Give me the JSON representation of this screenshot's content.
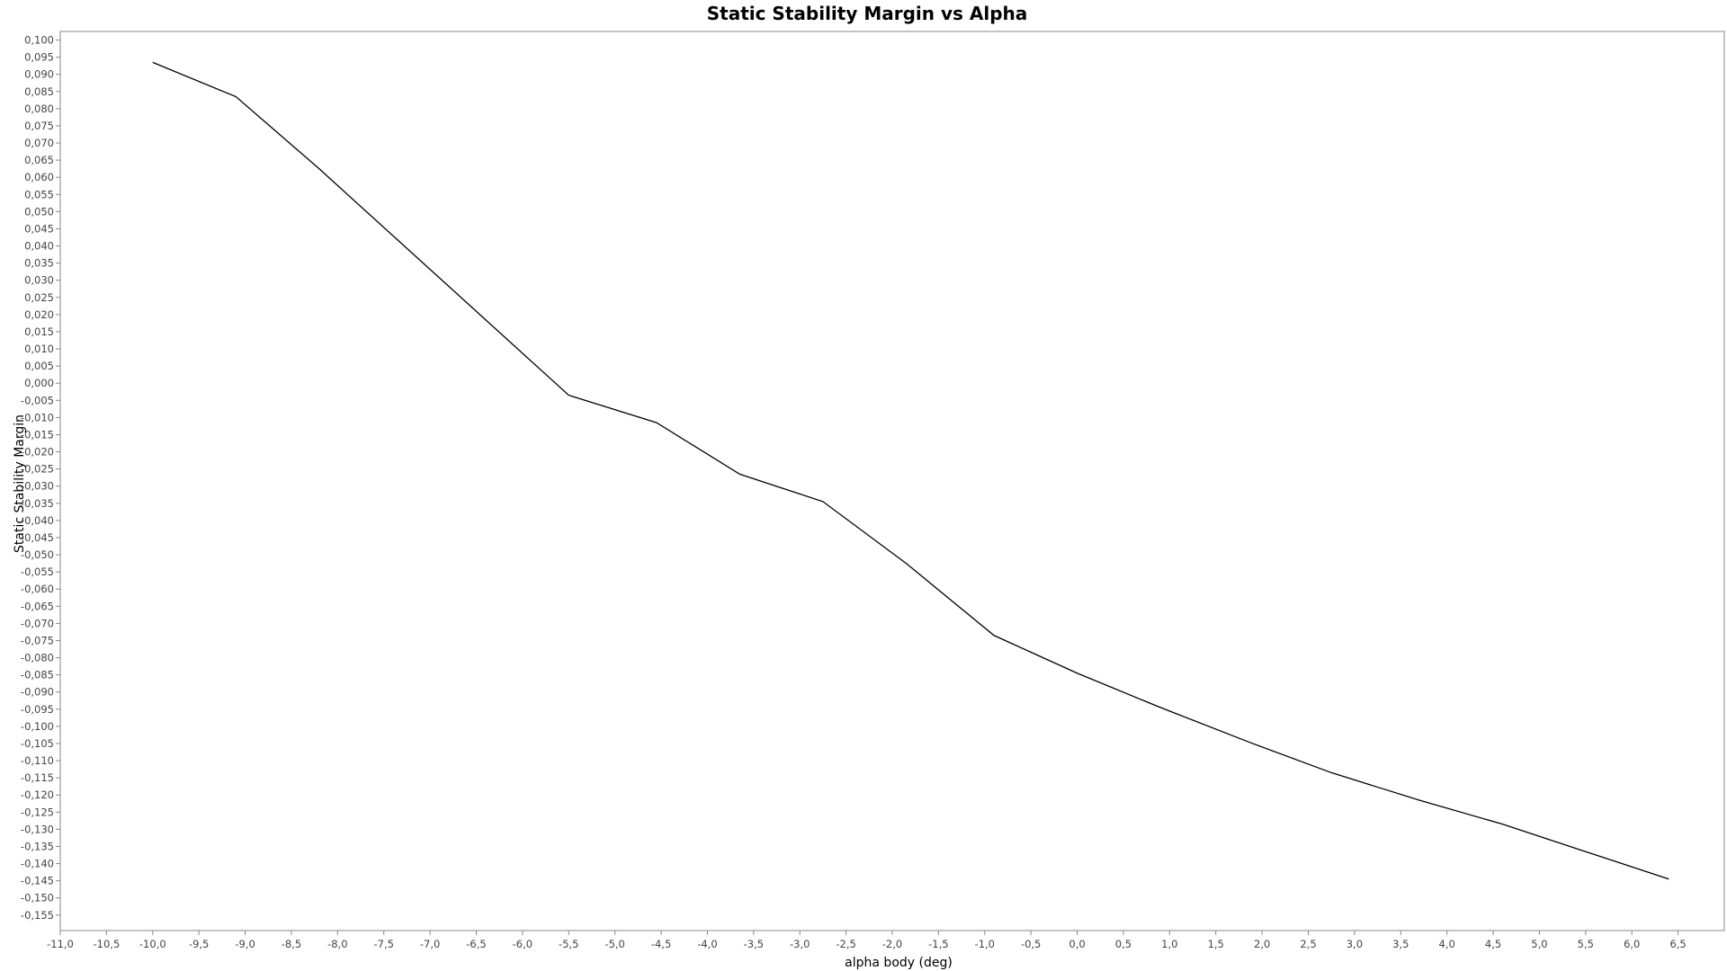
{
  "chart_data": {
    "type": "line",
    "title": "Static Stability Margin vs Alpha",
    "xlabel": "alpha body (deg)",
    "ylabel": "Static Stability Margin",
    "xlim": [
      -11.0,
      7.0
    ],
    "ylim": [
      -0.1595,
      0.1025
    ],
    "x_ticks": [
      "-11,0",
      "-10,5",
      "-10,0",
      "-9,5",
      "-9,0",
      "-8,5",
      "-8,0",
      "-7,5",
      "-7,0",
      "-6,5",
      "-6,0",
      "-5,5",
      "-5,0",
      "-4,5",
      "-4,0",
      "-3,5",
      "-3,0",
      "-2,5",
      "-2,0",
      "-1,5",
      "-1,0",
      "-0,5",
      "0,0",
      "0,5",
      "1,0",
      "1,5",
      "2,0",
      "2,5",
      "3,0",
      "3,5",
      "4,0",
      "4,5",
      "5,0",
      "5,5",
      "6,0",
      "6,5"
    ],
    "y_ticks": [
      "0,100",
      "0,095",
      "0,090",
      "0,085",
      "0,080",
      "0,075",
      "0,070",
      "0,065",
      "0,060",
      "0,055",
      "0,050",
      "0,045",
      "0,040",
      "0,035",
      "0,030",
      "0,025",
      "0,020",
      "0,015",
      "0,010",
      "0,005",
      "0,000",
      "-0,005",
      "-0,010",
      "-0,015",
      "-0,020",
      "-0,025",
      "-0,030",
      "-0,035",
      "-0,040",
      "-0,045",
      "-0,050",
      "-0,055",
      "-0,060",
      "-0,065",
      "-0,070",
      "-0,075",
      "-0,080",
      "-0,085",
      "-0,090",
      "-0,095",
      "-0,100",
      "-0,105",
      "-0,110",
      "-0,115",
      "-0,120",
      "-0,125",
      "-0,130",
      "-0,135",
      "-0,140",
      "-0,145",
      "-0,150",
      "-0,155"
    ],
    "grid": true,
    "series": [
      {
        "color": "#000000",
        "x": [
          -10.0,
          -9.1,
          -8.2,
          -7.3,
          -6.4,
          -5.5,
          -4.55,
          -3.65,
          -2.75,
          -1.85,
          -0.9,
          0.0,
          0.9,
          1.85,
          2.75,
          3.7,
          4.6,
          5.5,
          6.4
        ],
        "y": [
          0.0935,
          0.0835,
          0.0625,
          0.0405,
          0.0185,
          -0.0035,
          -0.0115,
          -0.0265,
          -0.0345,
          -0.0525,
          -0.0735,
          -0.0845,
          -0.0945,
          -0.1045,
          -0.1135,
          -0.1215,
          -0.1285,
          -0.1365,
          -0.1445
        ]
      }
    ]
  }
}
